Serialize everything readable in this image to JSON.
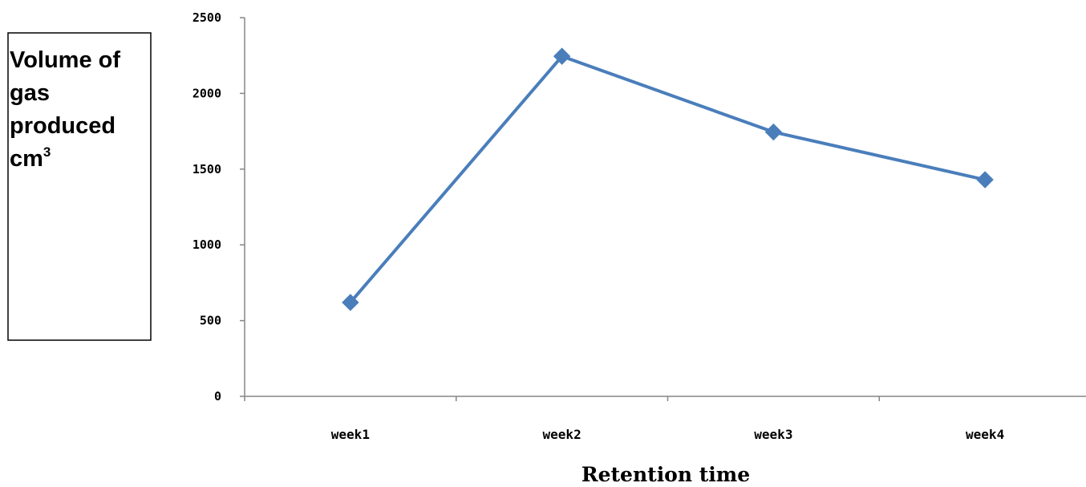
{
  "chart_data": {
    "type": "line",
    "categories": [
      "week1",
      "week2",
      "week3",
      "week4"
    ],
    "series": [
      {
        "values": [
          620,
          2245,
          1745,
          1430
        ],
        "color": "#4a7ebb",
        "marker": "diamond"
      }
    ],
    "xlabel": "Retention time",
    "ylabel_lines": [
      "Volume of",
      "gas",
      "produced",
      "cm"
    ],
    "ylabel_superscript": "3",
    "ylim": [
      0,
      2500
    ],
    "yticks": [
      "0",
      "500",
      "1000",
      "1500",
      "2000",
      "2500"
    ],
    "grid": false,
    "legend": "none"
  }
}
